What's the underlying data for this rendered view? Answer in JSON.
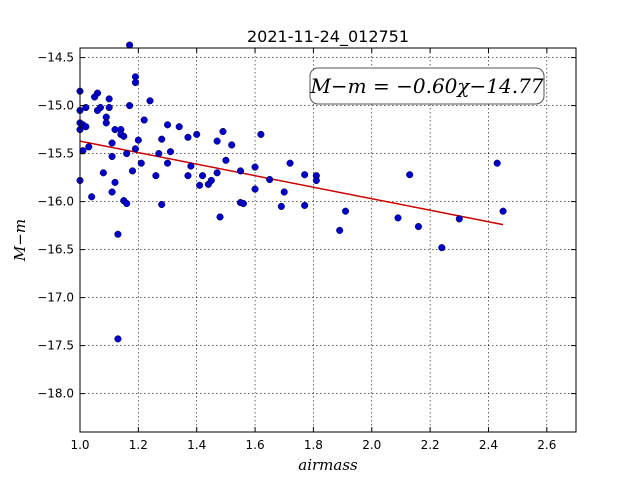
{
  "chart_data": {
    "type": "scatter",
    "title": "2021-11-24_012751",
    "xlabel": "airmass",
    "ylabel": "M−m",
    "xlim": [
      1.0,
      2.7
    ],
    "ylim": [
      -18.4,
      -14.4
    ],
    "y_inverted": true,
    "grid": true,
    "x_ticks": [
      1.0,
      1.2,
      1.4,
      1.6,
      1.8,
      2.0,
      2.2,
      2.4,
      2.6
    ],
    "x_tick_labels": [
      "1.0",
      "1.2",
      "1.4",
      "1.6",
      "1.8",
      "2.0",
      "2.2",
      "2.4",
      "2.6"
    ],
    "y_ticks": [
      -14.5,
      -15.0,
      -15.5,
      -16.0,
      -16.5,
      -17.0,
      -17.5,
      -18.0
    ],
    "y_tick_labels": [
      "−14.5",
      "−15.0",
      "−15.5",
      "−16.0",
      "−16.5",
      "−17.0",
      "−17.5",
      "−18.0"
    ],
    "annotation": "M−m = −0.60χ−14.77",
    "fit": {
      "slope": -0.6,
      "intercept": -14.77,
      "x_range": [
        1.0,
        2.45
      ],
      "color": "#cc0000"
    },
    "point_color": "#0000cc",
    "points": [
      [
        1.0,
        -14.85
      ],
      [
        1.06,
        -14.87
      ],
      [
        1.05,
        -14.91
      ],
      [
        1.02,
        -15.02
      ],
      [
        1.07,
        -15.02
      ],
      [
        1.06,
        -15.05
      ],
      [
        1.0,
        -15.05
      ],
      [
        1.1,
        -15.02
      ],
      [
        1.1,
        -14.93
      ],
      [
        1.09,
        -15.12
      ],
      [
        1.09,
        -15.18
      ],
      [
        1.12,
        -15.25
      ],
      [
        1.14,
        -15.25
      ],
      [
        1.17,
        -15.0
      ],
      [
        1.19,
        -14.7
      ],
      [
        1.19,
        -14.76
      ],
      [
        1.17,
        -14.37
      ],
      [
        1.24,
        -14.95
      ],
      [
        1.22,
        -15.15
      ],
      [
        1.0,
        -15.25
      ],
      [
        1.01,
        -15.2
      ],
      [
        1.0,
        -15.18
      ],
      [
        1.02,
        -15.22
      ],
      [
        1.01,
        -15.47
      ],
      [
        1.03,
        -15.43
      ],
      [
        1.11,
        -15.39
      ],
      [
        1.14,
        -15.3
      ],
      [
        1.15,
        -15.32
      ],
      [
        1.16,
        -15.5
      ],
      [
        1.11,
        -15.53
      ],
      [
        1.19,
        -15.45
      ],
      [
        1.2,
        -15.36
      ],
      [
        1.21,
        -15.6
      ],
      [
        1.18,
        -15.68
      ],
      [
        1.08,
        -15.7
      ],
      [
        1.12,
        -15.8
      ],
      [
        1.11,
        -15.9
      ],
      [
        1.04,
        -15.95
      ],
      [
        1.0,
        -15.78
      ],
      [
        1.15,
        -15.99
      ],
      [
        1.16,
        -16.02
      ],
      [
        1.27,
        -15.5
      ],
      [
        1.28,
        -15.35
      ],
      [
        1.3,
        -15.2
      ],
      [
        1.31,
        -15.48
      ],
      [
        1.3,
        -15.6
      ],
      [
        1.26,
        -15.73
      ],
      [
        1.34,
        -15.22
      ],
      [
        1.37,
        -15.33
      ],
      [
        1.4,
        -15.3
      ],
      [
        1.38,
        -15.63
      ],
      [
        1.37,
        -15.73
      ],
      [
        1.42,
        -15.73
      ],
      [
        1.41,
        -15.83
      ],
      [
        1.44,
        -15.82
      ],
      [
        1.45,
        -15.78
      ],
      [
        1.47,
        -15.7
      ],
      [
        1.47,
        -15.37
      ],
      [
        1.49,
        -15.27
      ],
      [
        1.52,
        -15.41
      ],
      [
        1.5,
        -15.57
      ],
      [
        1.55,
        -15.68
      ],
      [
        1.6,
        -15.64
      ],
      [
        1.62,
        -15.3
      ],
      [
        1.65,
        -15.77
      ],
      [
        1.6,
        -15.87
      ],
      [
        1.55,
        -16.01
      ],
      [
        1.56,
        -16.02
      ],
      [
        1.48,
        -16.16
      ],
      [
        1.28,
        -16.03
      ],
      [
        1.13,
        -16.34
      ],
      [
        1.13,
        -17.43
      ],
      [
        1.69,
        -16.05
      ],
      [
        1.7,
        -15.9
      ],
      [
        1.72,
        -15.6
      ],
      [
        1.77,
        -15.72
      ],
      [
        1.81,
        -15.73
      ],
      [
        1.81,
        -15.78
      ],
      [
        1.77,
        -16.04
      ],
      [
        1.91,
        -16.1
      ],
      [
        1.89,
        -16.3
      ],
      [
        2.09,
        -16.17
      ],
      [
        2.13,
        -15.72
      ],
      [
        2.16,
        -16.26
      ],
      [
        2.24,
        -16.48
      ],
      [
        2.3,
        -16.18
      ],
      [
        2.43,
        -15.6
      ],
      [
        2.45,
        -16.1
      ]
    ]
  }
}
